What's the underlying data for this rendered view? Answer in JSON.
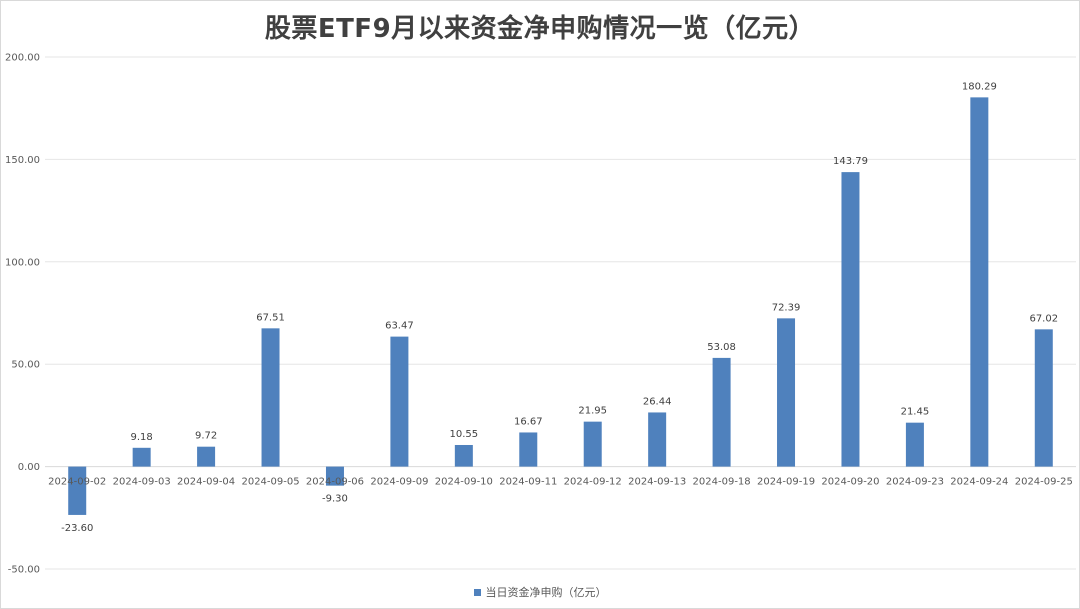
{
  "chart_data": {
    "type": "bar",
    "title": "股票ETF9月以来资金净申购情况一览（亿元）",
    "categories": [
      "2024-09-02",
      "2024-09-03",
      "2024-09-04",
      "2024-09-05",
      "2024-09-06",
      "2024-09-09",
      "2024-09-10",
      "2024-09-11",
      "2024-09-12",
      "2024-09-13",
      "2024-09-18",
      "2024-09-19",
      "2024-09-20",
      "2024-09-23",
      "2024-09-24",
      "2024-09-25"
    ],
    "series": [
      {
        "name": "当日资金净申购（亿元）",
        "values": [
          -23.6,
          9.18,
          9.72,
          67.51,
          -9.3,
          63.47,
          10.55,
          16.67,
          21.95,
          26.44,
          53.08,
          72.39,
          143.79,
          21.45,
          180.29,
          67.02
        ],
        "value_labels": [
          "-23.60",
          "9.18",
          "9.72",
          "67.51",
          "-9.30",
          "63.47",
          "10.55",
          "16.67",
          "21.95",
          "26.44",
          "53.08",
          "72.39",
          "143.79",
          "21.45",
          "180.29",
          "67.02"
        ],
        "color": "#4f81bd"
      }
    ],
    "ylim": [
      -50,
      200
    ],
    "yticks": [
      -50,
      0,
      50,
      100,
      150,
      200
    ],
    "ytick_labels": [
      "-50.00",
      "0.00",
      "50.00",
      "100.00",
      "150.00",
      "200.00"
    ],
    "grid": true,
    "legend_position": "bottom",
    "colors": {
      "gridline": "#e6e6e6",
      "axis": "#d9d9d9"
    }
  }
}
